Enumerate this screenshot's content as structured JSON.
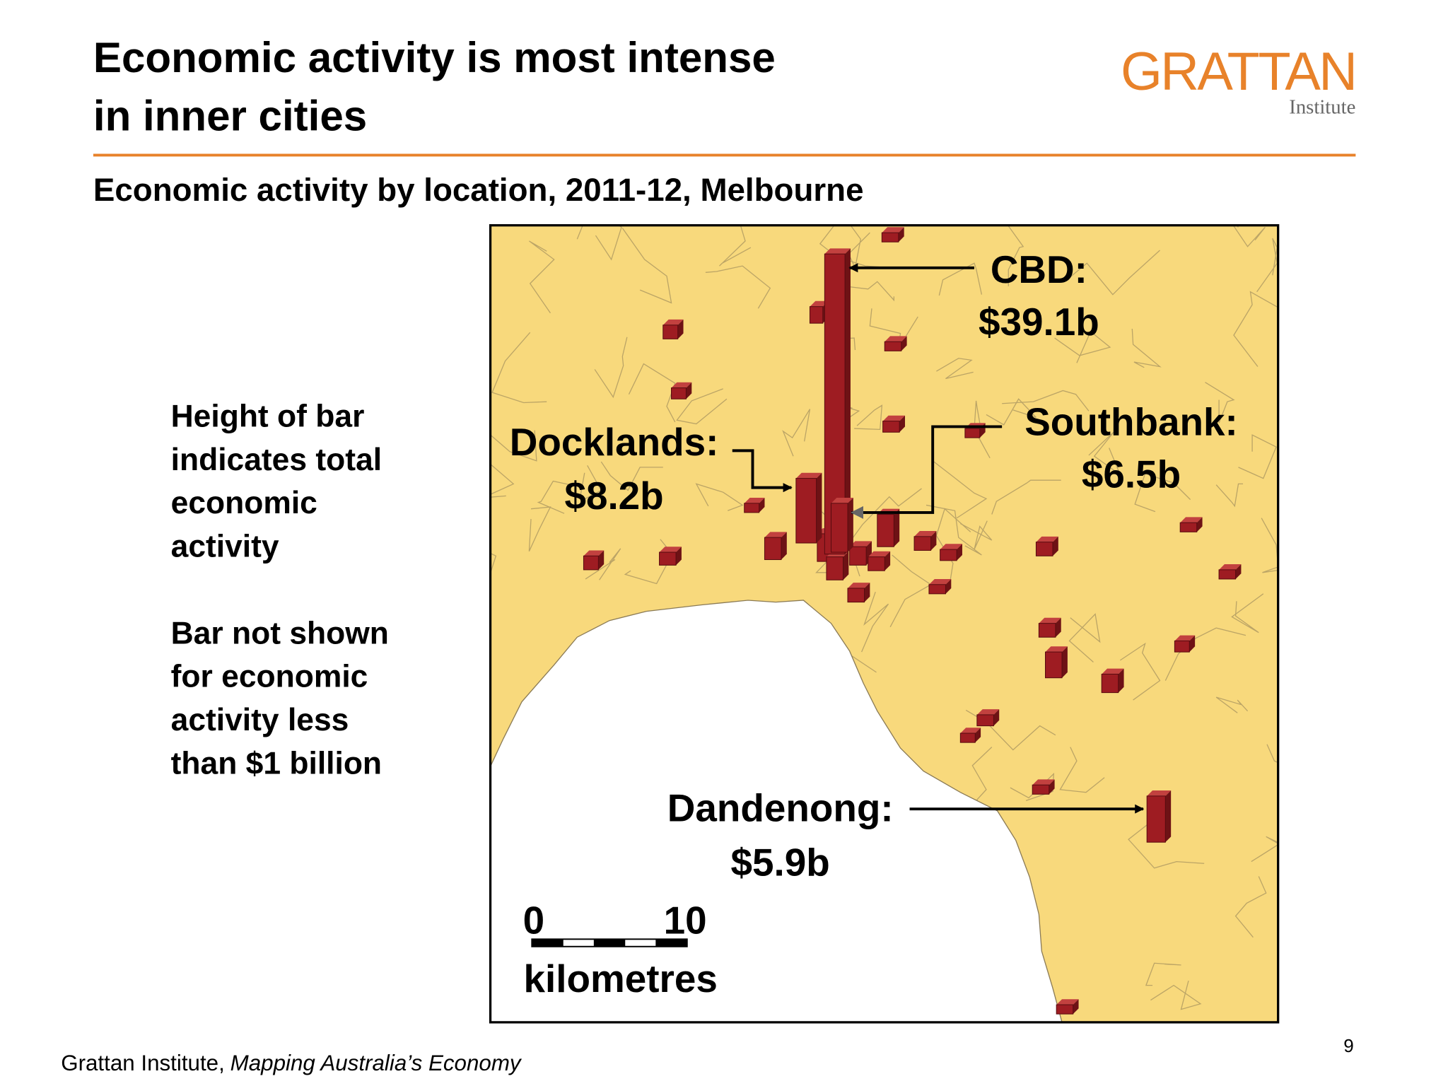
{
  "header": {
    "title_lines": [
      "Economic activity is most intense",
      "in inner cities"
    ],
    "logo": "GRATTAN",
    "logo_sub": "Institute"
  },
  "subtitle": "Economic activity by location, 2011-12, Melbourne",
  "note": {
    "paragraphs": [
      [
        "Height of bar",
        "indicates total",
        "economic",
        "activity"
      ],
      [
        "Bar not shown",
        "for economic",
        "activity less",
        "than $1 billion"
      ]
    ]
  },
  "map": {
    "callouts": [
      {
        "name": "CBD:",
        "value": "$39.1b"
      },
      {
        "name": "Docklands:",
        "value": "$8.2b"
      },
      {
        "name": "Southbank:",
        "value": "$6.5b"
      },
      {
        "name": "Dandenong:",
        "value": "$5.9b"
      }
    ],
    "scale": {
      "start": "0",
      "end": "10",
      "unit": "kilometres"
    }
  },
  "footer": {
    "source": "Grattan Institute,",
    "publication": "Mapping Australia’s Economy",
    "page": 9
  }
}
